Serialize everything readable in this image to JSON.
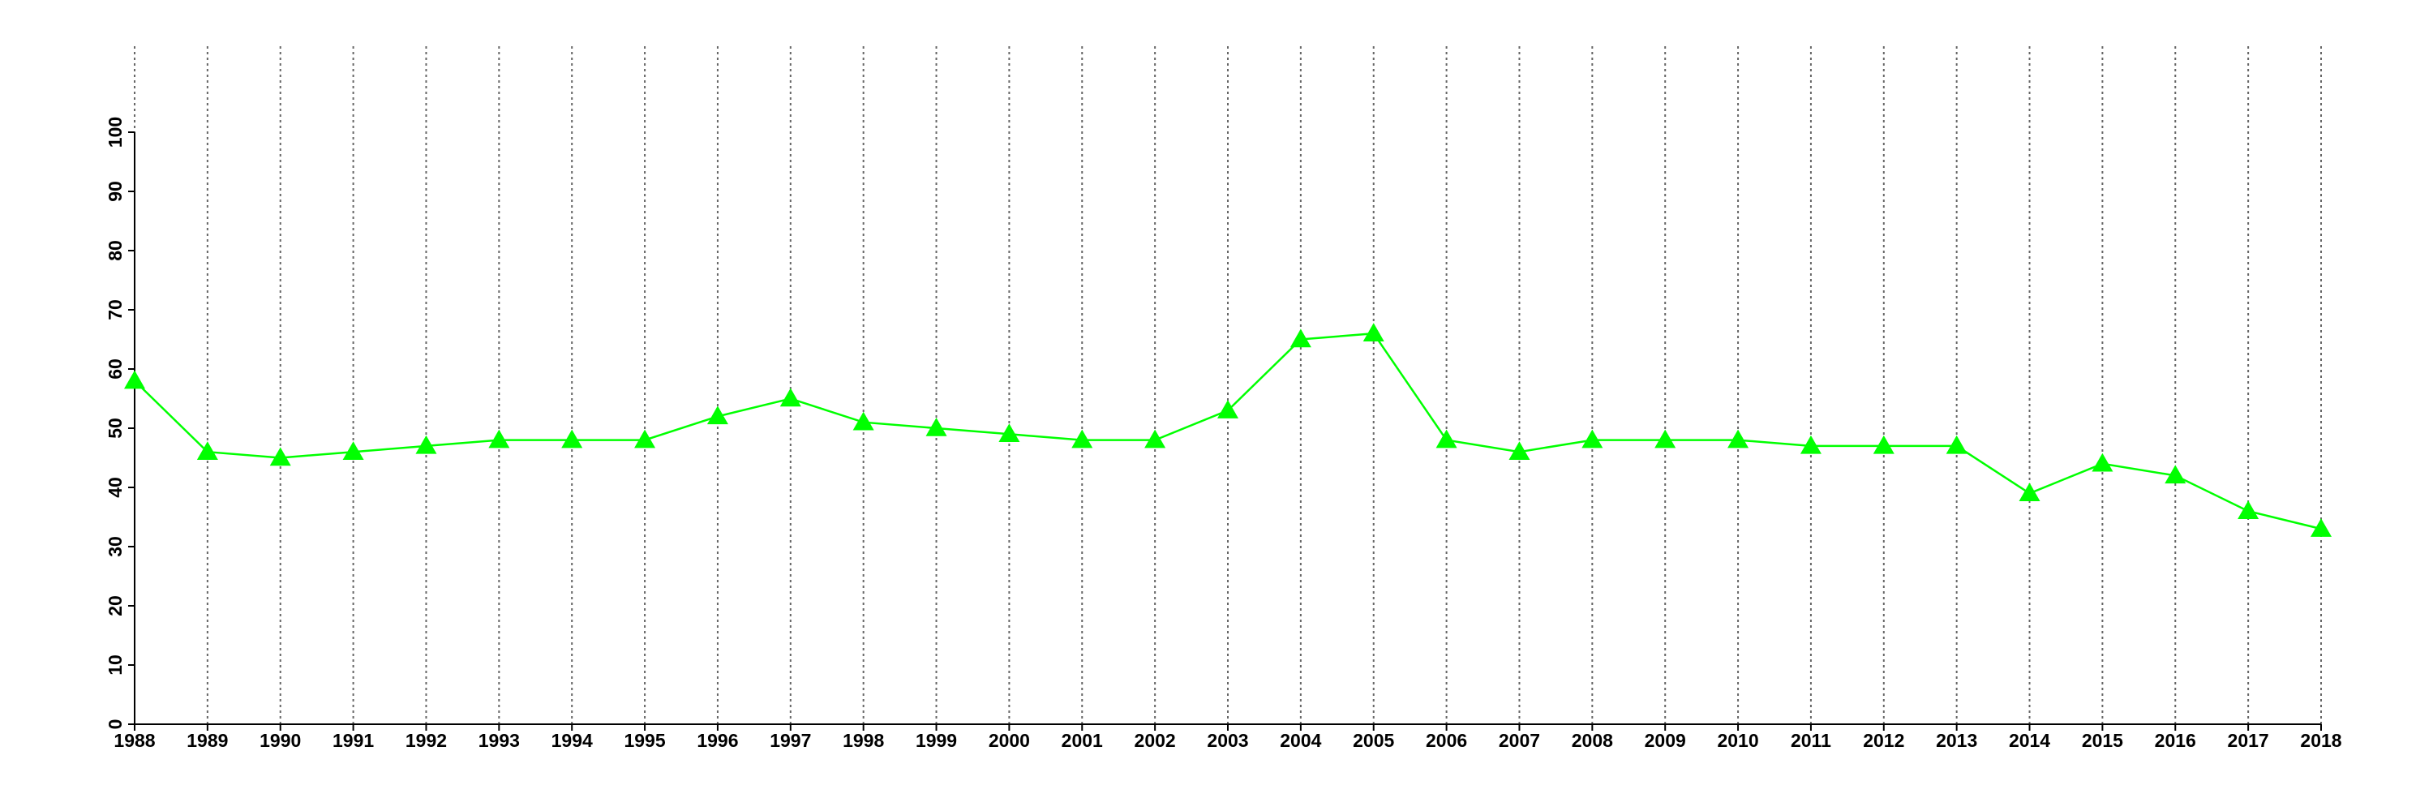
{
  "chart_data": {
    "type": "line",
    "x": [
      1988,
      1989,
      1990,
      1991,
      1992,
      1993,
      1994,
      1995,
      1996,
      1997,
      1998,
      1999,
      2000,
      2001,
      2002,
      2003,
      2004,
      2005,
      2006,
      2007,
      2008,
      2009,
      2010,
      2011,
      2012,
      2013,
      2014,
      2015,
      2016,
      2017,
      2018
    ],
    "series": [
      {
        "color": "#00ff00",
        "marker": "triangle",
        "values": [
          58,
          46,
          45,
          46,
          47,
          48,
          48,
          48,
          52,
          55,
          51,
          50,
          49,
          48,
          48,
          53,
          65,
          66,
          48,
          46,
          48,
          48,
          48,
          47,
          47,
          47,
          39,
          44,
          42,
          36,
          33
        ]
      }
    ],
    "xlim": [
      1988,
      2018
    ],
    "xticks": [
      1988,
      1989,
      1990,
      1991,
      1992,
      1993,
      1994,
      1995,
      1996,
      1997,
      1998,
      1999,
      2000,
      2001,
      2002,
      2003,
      2004,
      2005,
      2006,
      2007,
      2008,
      2009,
      2010,
      2011,
      2012,
      2013,
      2014,
      2015,
      2016,
      2017,
      2018
    ],
    "ylim": [
      0,
      100
    ],
    "yticks": [
      0,
      10,
      20,
      30,
      40,
      50,
      60,
      70,
      80,
      90,
      100
    ],
    "grid": true
  }
}
